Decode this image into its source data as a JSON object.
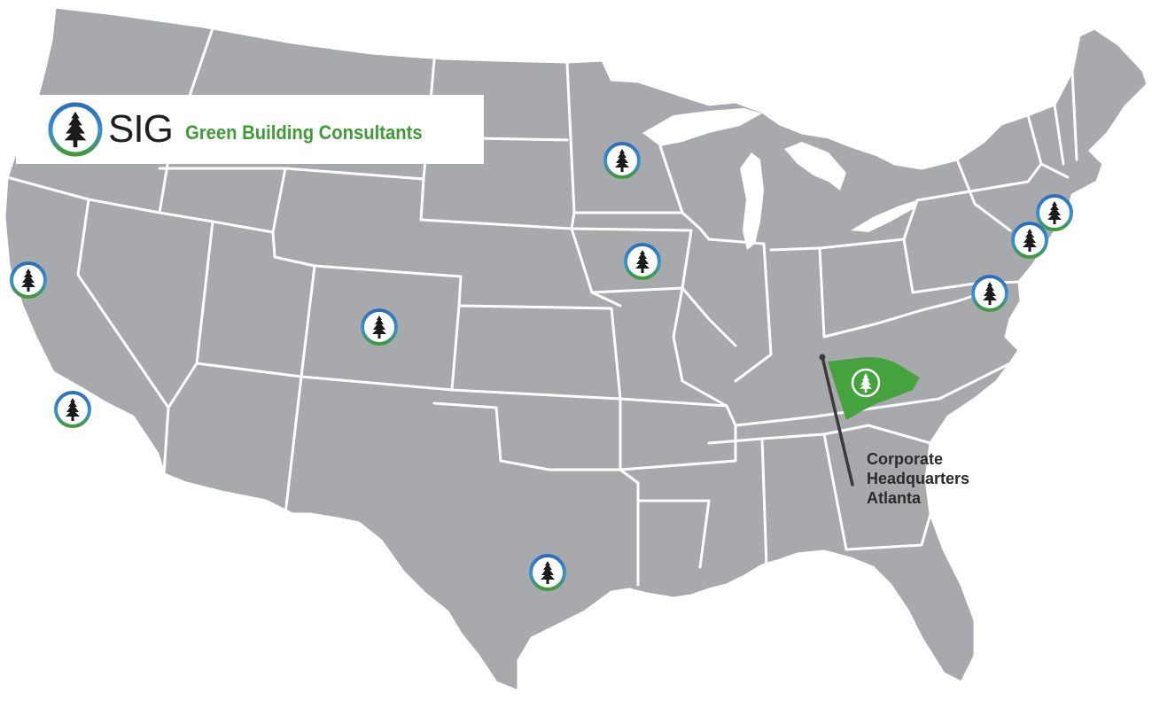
{
  "logo": {
    "name": "SIG",
    "tagline": "Green Building Consultants"
  },
  "headquarters": {
    "label_lines": [
      "Corporate",
      "Headquarters",
      "Atlanta"
    ]
  },
  "colors": {
    "land": "#a7a9ac",
    "borders": "#ffffff",
    "brand_green": "#3f9b35",
    "brand_blue": "#2a6fb8",
    "flag": "#46a23f",
    "tree": "#1b1b1b"
  },
  "icons": {
    "office_marker": "pine-tree-circle-icon",
    "headquarters_marker": "green-flag-icon",
    "logo_mark": "pine-tree-logo-icon"
  },
  "office_markers": [
    "northern-california-office",
    "southern-california-office",
    "colorado-office",
    "texas-office",
    "minnesota-office",
    "iowa-office",
    "new-york-office",
    "new-jersey-office",
    "maryland-office"
  ]
}
